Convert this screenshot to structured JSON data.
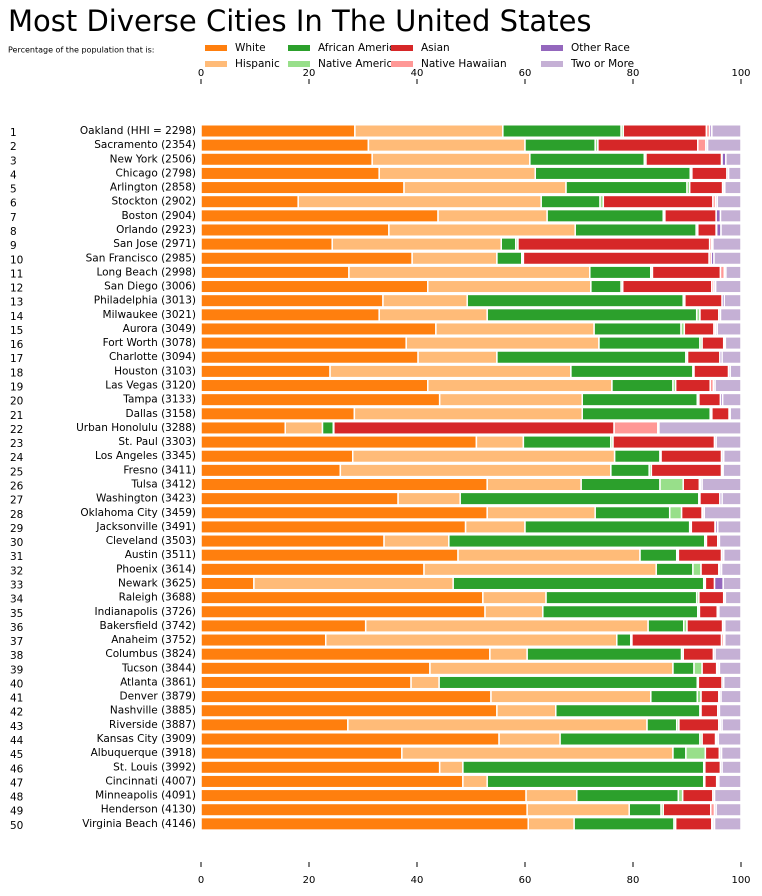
{
  "chart_data": {
    "type": "stacked-barh",
    "title": "Most Diverse Cities In The United States",
    "subtitle": "Percentage of the population that is:",
    "ranks": [
      1,
      2,
      3,
      4,
      5,
      6,
      7,
      8,
      9,
      10,
      11,
      12,
      13,
      14,
      15,
      16,
      17,
      18,
      19,
      20,
      21,
      22,
      23,
      24,
      25,
      26,
      27,
      28,
      29,
      30,
      31,
      32,
      33,
      34,
      35,
      36,
      37,
      38,
      39,
      40,
      41,
      42,
      43,
      44,
      45,
      46,
      47,
      48,
      49,
      50
    ],
    "categories": [
      "Oakland (HHI = 2298)",
      "Sacramento (2354)",
      "New York (2506)",
      "Chicago (2798)",
      "Arlington (2858)",
      "Stockton (2902)",
      "Boston (2904)",
      "Orlando (2923)",
      "San Jose (2971)",
      "San Francisco (2985)",
      "Long Beach (2998)",
      "San Diego (3006)",
      "Philadelphia (3013)",
      "Milwaukee (3021)",
      "Aurora (3049)",
      "Fort Worth (3078)",
      "Charlotte (3094)",
      "Houston (3103)",
      "Las Vegas (3120)",
      "Tampa (3133)",
      "Dallas (3158)",
      "Urban Honolulu (3288)",
      "St. Paul (3303)",
      "Los Angeles (3345)",
      "Fresno (3411)",
      "Tulsa (3412)",
      "Washington (3423)",
      "Oklahoma City (3459)",
      "Jacksonville (3491)",
      "Cleveland (3503)",
      "Austin (3511)",
      "Phoenix (3614)",
      "Newark (3625)",
      "Raleigh (3688)",
      "Indianapolis (3726)",
      "Bakersfield (3742)",
      "Anaheim (3752)",
      "Columbus (3824)",
      "Tucson (3844)",
      "Atlanta (3861)",
      "Denver (3879)",
      "Nashville (3885)",
      "Riverside (3887)",
      "Kansas City (3909)",
      "Albuquerque (3918)",
      "St. Louis (3992)",
      "Cincinnati (4007)",
      "Minneapolis (4091)",
      "Henderson (4130)",
      "Virginia Beach (4146)"
    ],
    "series": [
      {
        "name": "White",
        "color": "#ff7f0e",
        "values": [
          28.5,
          31,
          31.7,
          33,
          37.6,
          18,
          43.9,
          34.8,
          24.3,
          39.1,
          27.4,
          42,
          33.7,
          33,
          43.5,
          38,
          40.2,
          23.9,
          42,
          44.2,
          28.4,
          15.6,
          51,
          28.1,
          25.8,
          53,
          36.5,
          53,
          49,
          33.9,
          47.6,
          41.3,
          9.8,
          52.2,
          52.6,
          30.5,
          23.1,
          53.5,
          42.4,
          38.9,
          53.7,
          54.8,
          27.2,
          55.2,
          37.2,
          44.2,
          48.5,
          60.2,
          60.4,
          60.6
        ]
      },
      {
        "name": "Hispanic",
        "color": "#ffbb78",
        "values": [
          27.4,
          29,
          29.2,
          28.9,
          30,
          45,
          20.2,
          34.5,
          31.3,
          15.7,
          44.6,
          30.2,
          15.6,
          20,
          29.3,
          35.7,
          14.6,
          44.6,
          34.1,
          26.4,
          42.2,
          6.9,
          8.7,
          48.5,
          50.1,
          17.4,
          11.5,
          20,
          11,
          12,
          33.7,
          43,
          36.9,
          11.7,
          10.7,
          52.3,
          53.9,
          6.9,
          45,
          5.2,
          29.6,
          10.9,
          55.4,
          11.3,
          50.2,
          4.3,
          4.5,
          9.4,
          18.9,
          8.5
        ]
      },
      {
        "name": "African American",
        "color": "#2ca02c",
        "values": [
          21.9,
          13,
          21.2,
          28.7,
          22.4,
          10.9,
          21.5,
          22.4,
          2.7,
          4.6,
          11.3,
          5.6,
          40,
          38.8,
          16.1,
          18.7,
          35,
          22.6,
          11.3,
          21.3,
          23.7,
          2,
          16.2,
          8.4,
          7.1,
          14.6,
          44.2,
          13.8,
          30.5,
          47.4,
          6.8,
          6.8,
          46.4,
          27.9,
          28.7,
          6.6,
          2.6,
          28.6,
          3.9,
          47.8,
          8.6,
          26.7,
          5.5,
          25.9,
          2.4,
          44.6,
          40.1,
          18.8,
          5.9,
          18.5
        ]
      },
      {
        "name": "Native American",
        "color": "#98df8a",
        "values": [
          0.4,
          0.5,
          0.3,
          0.3,
          0.5,
          0.6,
          0.3,
          0.3,
          0.4,
          0.3,
          0.3,
          0.3,
          0.3,
          0.6,
          0.6,
          0.4,
          0.3,
          0.2,
          0.5,
          0.3,
          0.3,
          0.1,
          0.4,
          0.2,
          0.4,
          4.3,
          0.2,
          2.2,
          0.3,
          0.3,
          0.3,
          1.5,
          0.3,
          0.4,
          0.3,
          0.6,
          0.2,
          0.3,
          1.5,
          0.2,
          0.7,
          0.2,
          0.4,
          0.4,
          3.6,
          0.2,
          0.2,
          0.8,
          0.4,
          0.3
        ]
      },
      {
        "name": "Asian",
        "color": "#d62728",
        "values": [
          15.4,
          18.5,
          14,
          6.5,
          6.1,
          20.3,
          9.5,
          3.4,
          35.5,
          34.4,
          12.6,
          16.5,
          6.9,
          3.5,
          5.5,
          4,
          6,
          6.4,
          6.4,
          4,
          3.2,
          51.9,
          18.8,
          11.2,
          13,
          3,
          3.7,
          3.8,
          4.4,
          2.1,
          8,
          3.3,
          1.7,
          4.6,
          3.3,
          6.6,
          16.6,
          5.6,
          2.7,
          4.4,
          3.3,
          3.1,
          7.4,
          2.5,
          2.6,
          2.9,
          2.2,
          5.6,
          8.8,
          6.7
        ]
      },
      {
        "name": "Native Hawaiian",
        "color": "#ff9896",
        "values": [
          0.6,
          1.5,
          0.1,
          0,
          0.1,
          0.5,
          0,
          0.1,
          0.4,
          0.4,
          0.7,
          0.4,
          0,
          0,
          0.3,
          0.1,
          0,
          0,
          0.6,
          0,
          0,
          8.1,
          0,
          0.1,
          0.1,
          0.2,
          0,
          0.1,
          0.1,
          0,
          0.1,
          0.2,
          0,
          0,
          0,
          0.1,
          0.4,
          0,
          0.2,
          0,
          0.1,
          0,
          0.3,
          0.2,
          0.1,
          0,
          0.1,
          0,
          0.7,
          0.2
        ]
      },
      {
        "name": "Other Race",
        "color": "#9467bd",
        "values": [
          0.4,
          0.3,
          0.7,
          0.3,
          0.3,
          0.3,
          0.8,
          0.8,
          0.2,
          0.5,
          0.3,
          0.3,
          0.4,
          0.3,
          0.3,
          0.2,
          0.4,
          0.3,
          0.3,
          0.4,
          0.2,
          0.2,
          0.3,
          0.3,
          0.2,
          0.3,
          0.4,
          0.3,
          0.4,
          0.3,
          0.3,
          0.3,
          1.6,
          0.3,
          0.3,
          0.3,
          0.2,
          0.3,
          0.3,
          0.3,
          0.3,
          0.3,
          0.3,
          0.3,
          0.3,
          0.3,
          0.3,
          0.3,
          0.3,
          0.3
        ]
      },
      {
        "name": "Two or More",
        "color": "#c5b0d5",
        "values": [
          5.4,
          6.2,
          2.8,
          2.3,
          3,
          4.4,
          3.8,
          3.7,
          5.2,
          5,
          2.8,
          4.7,
          3.1,
          3.8,
          4.4,
          2.9,
          3.5,
          2,
          4.8,
          3.4,
          2,
          15.2,
          4.6,
          3.2,
          3.3,
          7.2,
          3.5,
          6.8,
          4.3,
          4,
          3.2,
          3.6,
          3.3,
          2.9,
          4.1,
          3,
          3,
          4.8,
          4,
          3.2,
          3.7,
          4,
          3.5,
          4.2,
          3.6,
          3.5,
          4.1,
          4.9,
          4.6,
          4.9
        ]
      }
    ],
    "xlim": [
      0,
      100
    ],
    "xticks": [
      0,
      20,
      40,
      60,
      80,
      100
    ]
  }
}
